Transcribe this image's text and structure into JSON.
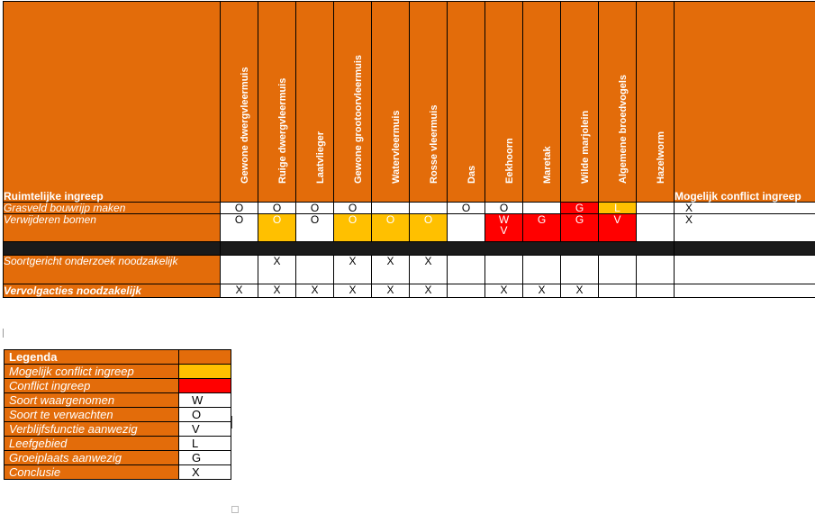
{
  "header": {
    "first_col": "Ruimtelijke ingreep",
    "species": [
      "Gewone dwergvleermuis",
      "Ruige dwergvleermuis",
      "Laatvlieger",
      "Gewone grootoorvleermuis",
      "Watervleermuis",
      "Rosse vleermuis",
      "Das",
      "Eekhoorn",
      "Maretak",
      "Wilde marjolein",
      "Algemene broedvogels",
      "Hazelworm"
    ],
    "last_col": "Mogelijk conflict ingreep"
  },
  "rows": [
    {
      "label": "Grasveld bouwrijp maken",
      "cells": [
        "O",
        "O",
        "O",
        "O",
        "",
        "",
        "O",
        "O",
        "",
        "G",
        "L",
        ""
      ],
      "colors": [
        "",
        "",
        "",
        "",
        "",
        "",
        "",
        "",
        "",
        "red",
        "yellow",
        ""
      ],
      "conclusion": "X"
    },
    {
      "label": "Verwijderen bomen",
      "cells": [
        "O",
        "O",
        "O",
        "O",
        "O",
        "O",
        "",
        "W V",
        "G",
        "G",
        "V",
        ""
      ],
      "colors": [
        "",
        "yellow",
        "",
        "yellow",
        "yellow",
        "yellow",
        "",
        "red",
        "red",
        "red",
        "red",
        ""
      ],
      "conclusion": "X"
    },
    {
      "label": "Soortgericht onderzoek noodzakelijk",
      "cells": [
        "",
        "X",
        "",
        "X",
        "X",
        "X",
        "",
        "",
        "",
        "",
        "",
        ""
      ],
      "conclusion": ""
    },
    {
      "label": "Vervolgacties noodzakelijk",
      "cells": [
        "X",
        "X",
        "X",
        "X",
        "X",
        "X",
        "",
        "X",
        "X",
        "X",
        "",
        ""
      ],
      "conclusion": ""
    }
  ],
  "legend": {
    "title": "Legenda",
    "items": [
      {
        "label": "Mogelijk conflict ingreep",
        "value": "",
        "color": "#FFC000"
      },
      {
        "label": "Conflict ingreep",
        "value": "",
        "color": "#FF0000"
      },
      {
        "label": "Soort waargenomen",
        "value": "W"
      },
      {
        "label": "Soort te verwachten",
        "value": "O"
      },
      {
        "label": "Verblijfsfunctie aanwezig",
        "value": "V"
      },
      {
        "label": "Leefgebied",
        "value": "L"
      },
      {
        "label": "Groeiplaats aanwezig",
        "value": "G"
      },
      {
        "label": "Conclusie",
        "value": "X"
      }
    ]
  },
  "colors": {
    "orange": "#E36C0A",
    "yellow": "#FFC000",
    "red": "#FF0000"
  }
}
